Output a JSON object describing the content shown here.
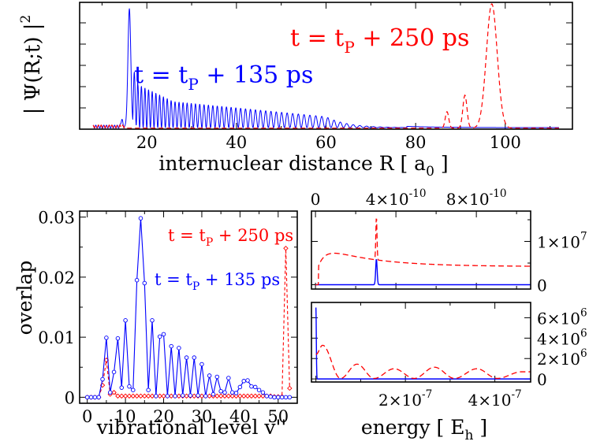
{
  "colors": {
    "blue": "#0000ff",
    "red": "#ff0000",
    "axis": "#000000"
  },
  "chart_data": [
    {
      "type": "line",
      "id": "density",
      "title": "",
      "ylabel": "| Ψ(R;t) |",
      "ylabel_sup": "2",
      "xlabel": "internuclear distance R [ a",
      "xlabel_sub": "0",
      "xlabel_end": " ]",
      "xlim": [
        5,
        115
      ],
      "ylim": [
        0,
        1
      ],
      "x_ticks": [
        "20",
        "40",
        "60",
        "80",
        "100"
      ],
      "x_tick_values": [
        20,
        40,
        60,
        80,
        100
      ],
      "y_ticks_labeled": false,
      "annotations": [
        {
          "text_pre": "t = t",
          "sub": "P",
          "text_post": " + 135 ps",
          "color": "#0000ff"
        },
        {
          "text_pre": "t = t",
          "sub": "P",
          "text_post": " + 250 ps",
          "color": "#ff0000"
        }
      ],
      "series": [
        {
          "name": "t = tP + 135 ps",
          "color": "#0000ff",
          "style": "solid",
          "model": "oscillating envelope 8–75 a0, main peak ~0.93 at R≈16"
        },
        {
          "name": "t = tP + 250 ps",
          "color": "#ff0000",
          "style": "dashed",
          "peaks": [
            [
              87,
              0.13
            ],
            [
              91,
              0.26
            ],
            [
              97,
              0.98
            ]
          ]
        }
      ]
    },
    {
      "type": "scatter-line",
      "id": "overlap",
      "title": "",
      "ylabel": "overlap",
      "xlabel": "vibrational level v''",
      "xlim": [
        -2,
        55
      ],
      "ylim": [
        -0.001,
        0.031
      ],
      "x_ticks": [
        "0",
        "10",
        "20",
        "30",
        "40",
        "50"
      ],
      "x_tick_values": [
        0,
        10,
        20,
        30,
        40,
        50
      ],
      "y_ticks": [
        "0",
        "0.01",
        "0.02",
        "0.03"
      ],
      "y_tick_values": [
        0,
        0.01,
        0.02,
        0.03
      ],
      "annotations": [
        {
          "text_pre": "t = t",
          "sub": "P",
          "text_post": " + 250 ps",
          "color": "#ff0000"
        },
        {
          "text_pre": "t = t",
          "sub": "P",
          "text_post": " + 135 ps",
          "color": "#0000ff"
        }
      ],
      "series": [
        {
          "name": "t = tP + 135 ps",
          "color": "#0000ff",
          "style": "solid",
          "marker": "circle",
          "x": [
            0,
            1,
            2,
            3,
            4,
            5,
            6,
            7,
            8,
            9,
            10,
            11,
            12,
            13,
            14,
            15,
            16,
            17,
            18,
            19,
            20,
            21,
            22,
            23,
            24,
            25,
            26,
            27,
            28,
            29,
            30,
            31,
            32,
            33,
            34,
            35,
            36,
            37,
            38,
            39,
            40,
            41,
            42,
            43,
            44,
            45,
            46,
            47,
            48,
            49,
            50,
            51,
            52,
            53
          ],
          "y": [
            0,
            0,
            0,
            0,
            0.003,
            0.0099,
            0.0008,
            0.0042,
            0.0098,
            0.0016,
            0.0128,
            0.0018,
            0.0012,
            0.0195,
            0.0298,
            0.019,
            0.0012,
            0.0128,
            0.0002,
            0.0101,
            0.0105,
            0.0002,
            0.0085,
            0.0002,
            0.0082,
            0.0003,
            0.0066,
            0.0003,
            0.0066,
            0.0003,
            0.0055,
            0.0002,
            0.0036,
            0.0005,
            0.0034,
            0.001,
            0.0008,
            0.0032,
            0.0008,
            0.0007,
            0.0017,
            0.0027,
            0.0028,
            0.0018,
            0.0017,
            0.0012,
            0.0008,
            0.0002,
            0.0001,
            0,
            0,
            0,
            0,
            0
          ]
        },
        {
          "name": "t = tP + 250 ps",
          "color": "#ff0000",
          "style": "dashed",
          "marker": "diamond",
          "x": [
            0,
            1,
            2,
            3,
            4,
            5,
            6,
            7,
            8,
            9,
            10,
            11,
            12,
            13,
            14,
            15,
            16,
            17,
            18,
            19,
            20,
            21,
            22,
            23,
            24,
            25,
            26,
            27,
            28,
            29,
            30,
            31,
            32,
            33,
            34,
            35,
            36,
            37,
            38,
            39,
            40,
            41,
            42,
            43,
            44,
            45,
            46,
            47,
            48,
            49,
            50,
            51,
            52,
            53
          ],
          "y": [
            0,
            0,
            0,
            0,
            0.002,
            0.0062,
            0.0005,
            0.0008,
            0.0002,
            0.0002,
            0.0002,
            0.0002,
            0.0002,
            0.0002,
            0.0002,
            0.0002,
            0.0002,
            0.0002,
            0.0002,
            0.0002,
            0.0002,
            0.0002,
            0.0002,
            0.0002,
            0.0002,
            0.0002,
            0.0002,
            0.0002,
            0.0002,
            0.0002,
            0.0002,
            0.0002,
            0.0002,
            0.0002,
            0.0002,
            0.0002,
            0.0002,
            0.0002,
            0.0002,
            0.0002,
            0.0002,
            0.0002,
            0.0002,
            0.0002,
            0.0002,
            0.0002,
            0.0002,
            0.0002,
            0.0002,
            0.0001,
            0.0001,
            0.0001,
            0.0248,
            0.0015
          ]
        }
      ]
    },
    {
      "type": "line",
      "id": "energy-top",
      "title": "",
      "xlabel": "",
      "xlim": [
        -2e-11,
        1.07e-09
      ],
      "ylim": [
        -1000000.0,
        17000000.0
      ],
      "x_ticks_top": [
        {
          "base": "0",
          "exp": ""
        },
        {
          "base": "4×10",
          "exp": "-10"
        },
        {
          "base": "8×10",
          "exp": "-10"
        }
      ],
      "x_tick_values": [
        0,
        4e-10,
        8e-10
      ],
      "y_ticks_right": [
        {
          "base": "0",
          "exp": ""
        },
        {
          "base": "1×10",
          "exp": "7"
        }
      ],
      "y_tick_values": [
        0,
        10000000.0
      ],
      "series": [
        {
          "name": "t = tP + 135 ps",
          "color": "#0000ff",
          "style": "solid",
          "model": "baseline 0 with spike ~6e6 at 3.03e-10"
        },
        {
          "name": "t = tP + 250 ps",
          "color": "#ff0000",
          "style": "dashed",
          "model": "step at 1.5e-11 to ~6.5e6, broad max at ~1.5e-10, spike 1.6e7 at 3.03e-10, decays to ~4.2e6"
        }
      ]
    },
    {
      "type": "line",
      "id": "energy-bottom",
      "title": "",
      "xlabel": "energy [ E",
      "xlabel_sub": "h",
      "xlabel_end": " ]",
      "xlim": [
        -1e-08,
        4.8e-07
      ],
      "ylim": [
        -300000.0,
        7500000.0
      ],
      "x_ticks": [
        {
          "base": "2×10",
          "exp": "-7"
        },
        {
          "base": "4×10",
          "exp": "-7"
        }
      ],
      "x_tick_values": [
        2e-07,
        4e-07
      ],
      "y_ticks_right": [
        {
          "base": "0",
          "exp": ""
        },
        {
          "base": "2×10",
          "exp": "6"
        },
        {
          "base": "4×10",
          "exp": "6"
        },
        {
          "base": "6×10",
          "exp": "6"
        }
      ],
      "y_tick_values": [
        0,
        2000000.0,
        4000000.0,
        6000000.0
      ],
      "series": [
        {
          "name": "t = tP + 135 ps",
          "color": "#0000ff",
          "style": "solid",
          "model": "baseline 0 with spike ~7e6 at 0"
        },
        {
          "name": "t = tP + 250 ps",
          "color": "#ff0000",
          "style": "dashed",
          "model": "damped oscillation: 3.3e6 at 1.5e-8, minima near 5.5e-8, 1.3e-7, 2.2e-7, 3.1e-7"
        }
      ]
    }
  ]
}
